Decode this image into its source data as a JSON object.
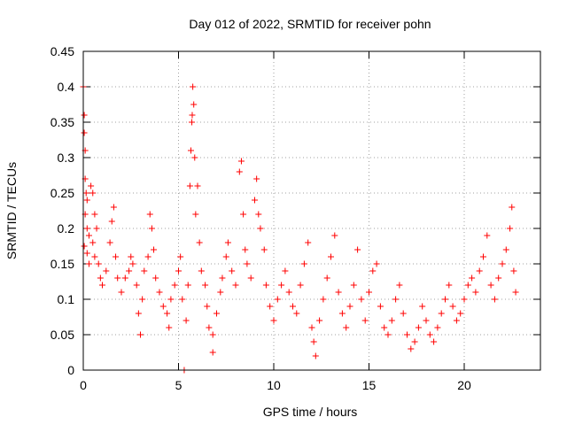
{
  "chart_data": {
    "type": "scatter",
    "title": "Day 012 of 2022, SRMTID for receiver pohn",
    "xlabel": "GPS time / hours",
    "ylabel": "SRMTID / TECUs",
    "xlim": [
      0,
      24
    ],
    "ylim": [
      0,
      0.45
    ],
    "xticks": [
      0,
      5,
      10,
      15,
      20
    ],
    "yticks": [
      0,
      0.05,
      0.1,
      0.15,
      0.2,
      0.25,
      0.3,
      0.35,
      0.4,
      0.45
    ],
    "grid": true,
    "marker": "+",
    "color": "#ff0000",
    "series": [
      {
        "name": "SRMTID",
        "sampling_note": "dense scatter; values below estimated from figure",
        "points": [
          [
            0.0,
            0.4
          ],
          [
            0.05,
            0.36
          ],
          [
            0.05,
            0.335
          ],
          [
            0.1,
            0.31
          ],
          [
            0.1,
            0.27
          ],
          [
            0.15,
            0.25
          ],
          [
            0.2,
            0.24
          ],
          [
            0.1,
            0.22
          ],
          [
            0.2,
            0.2
          ],
          [
            0.3,
            0.19
          ],
          [
            0.05,
            0.175
          ],
          [
            0.2,
            0.165
          ],
          [
            0.3,
            0.15
          ],
          [
            0.4,
            0.26
          ],
          [
            0.5,
            0.25
          ],
          [
            0.6,
            0.22
          ],
          [
            0.7,
            0.2
          ],
          [
            0.5,
            0.18
          ],
          [
            0.6,
            0.16
          ],
          [
            0.8,
            0.15
          ],
          [
            0.9,
            0.13
          ],
          [
            1.0,
            0.12
          ],
          [
            1.2,
            0.14
          ],
          [
            1.4,
            0.18
          ],
          [
            1.5,
            0.21
          ],
          [
            1.6,
            0.23
          ],
          [
            1.7,
            0.16
          ],
          [
            1.8,
            0.13
          ],
          [
            2.0,
            0.11
          ],
          [
            2.2,
            0.13
          ],
          [
            2.4,
            0.14
          ],
          [
            2.5,
            0.16
          ],
          [
            2.6,
            0.15
          ],
          [
            2.8,
            0.12
          ],
          [
            2.9,
            0.08
          ],
          [
            3.0,
            0.05
          ],
          [
            3.1,
            0.1
          ],
          [
            3.2,
            0.14
          ],
          [
            3.4,
            0.16
          ],
          [
            3.5,
            0.22
          ],
          [
            3.6,
            0.2
          ],
          [
            3.7,
            0.17
          ],
          [
            3.8,
            0.13
          ],
          [
            4.0,
            0.11
          ],
          [
            4.2,
            0.09
          ],
          [
            4.4,
            0.08
          ],
          [
            4.5,
            0.06
          ],
          [
            4.6,
            0.1
          ],
          [
            4.8,
            0.12
          ],
          [
            5.0,
            0.14
          ],
          [
            5.1,
            0.16
          ],
          [
            5.2,
            0.1
          ],
          [
            5.3,
            0.0
          ],
          [
            5.4,
            0.07
          ],
          [
            5.5,
            0.12
          ],
          [
            5.6,
            0.26
          ],
          [
            5.65,
            0.31
          ],
          [
            5.7,
            0.35
          ],
          [
            5.72,
            0.36
          ],
          [
            5.75,
            0.4
          ],
          [
            5.8,
            0.375
          ],
          [
            5.85,
            0.3
          ],
          [
            5.9,
            0.22
          ],
          [
            6.0,
            0.26
          ],
          [
            6.1,
            0.18
          ],
          [
            6.2,
            0.14
          ],
          [
            6.4,
            0.12
          ],
          [
            6.5,
            0.09
          ],
          [
            6.6,
            0.06
          ],
          [
            6.8,
            0.05
          ],
          [
            6.8,
            0.025
          ],
          [
            7.0,
            0.08
          ],
          [
            7.2,
            0.11
          ],
          [
            7.3,
            0.13
          ],
          [
            7.5,
            0.16
          ],
          [
            7.6,
            0.18
          ],
          [
            7.8,
            0.14
          ],
          [
            8.0,
            0.12
          ],
          [
            8.2,
            0.28
          ],
          [
            8.3,
            0.295
          ],
          [
            8.4,
            0.22
          ],
          [
            8.5,
            0.17
          ],
          [
            8.6,
            0.15
          ],
          [
            8.8,
            0.13
          ],
          [
            9.0,
            0.24
          ],
          [
            9.1,
            0.27
          ],
          [
            9.2,
            0.22
          ],
          [
            9.3,
            0.2
          ],
          [
            9.5,
            0.17
          ],
          [
            9.6,
            0.12
          ],
          [
            9.8,
            0.09
          ],
          [
            10.0,
            0.07
          ],
          [
            10.2,
            0.1
          ],
          [
            10.4,
            0.12
          ],
          [
            10.6,
            0.14
          ],
          [
            10.8,
            0.11
          ],
          [
            11.0,
            0.09
          ],
          [
            11.2,
            0.08
          ],
          [
            11.4,
            0.12
          ],
          [
            11.6,
            0.15
          ],
          [
            11.8,
            0.18
          ],
          [
            12.0,
            0.06
          ],
          [
            12.1,
            0.04
          ],
          [
            12.2,
            0.02
          ],
          [
            12.4,
            0.07
          ],
          [
            12.6,
            0.1
          ],
          [
            12.8,
            0.13
          ],
          [
            13.0,
            0.16
          ],
          [
            13.2,
            0.19
          ],
          [
            13.4,
            0.11
          ],
          [
            13.6,
            0.08
          ],
          [
            13.8,
            0.06
          ],
          [
            14.0,
            0.09
          ],
          [
            14.2,
            0.12
          ],
          [
            14.4,
            0.17
          ],
          [
            14.6,
            0.1
          ],
          [
            14.8,
            0.07
          ],
          [
            15.0,
            0.11
          ],
          [
            15.2,
            0.14
          ],
          [
            15.4,
            0.15
          ],
          [
            15.6,
            0.09
          ],
          [
            15.8,
            0.06
          ],
          [
            16.0,
            0.05
          ],
          [
            16.2,
            0.07
          ],
          [
            16.4,
            0.1
          ],
          [
            16.6,
            0.12
          ],
          [
            16.8,
            0.08
          ],
          [
            17.0,
            0.05
          ],
          [
            17.2,
            0.03
          ],
          [
            17.4,
            0.04
          ],
          [
            17.6,
            0.06
          ],
          [
            17.8,
            0.09
          ],
          [
            18.0,
            0.07
          ],
          [
            18.2,
            0.05
          ],
          [
            18.4,
            0.04
          ],
          [
            18.6,
            0.06
          ],
          [
            18.8,
            0.08
          ],
          [
            19.0,
            0.1
          ],
          [
            19.2,
            0.12
          ],
          [
            19.4,
            0.09
          ],
          [
            19.6,
            0.07
          ],
          [
            19.8,
            0.08
          ],
          [
            20.0,
            0.1
          ],
          [
            20.2,
            0.12
          ],
          [
            20.4,
            0.13
          ],
          [
            20.6,
            0.11
          ],
          [
            20.8,
            0.14
          ],
          [
            21.0,
            0.16
          ],
          [
            21.2,
            0.19
          ],
          [
            21.4,
            0.12
          ],
          [
            21.6,
            0.1
          ],
          [
            21.8,
            0.13
          ],
          [
            22.0,
            0.15
          ],
          [
            22.2,
            0.17
          ],
          [
            22.4,
            0.2
          ],
          [
            22.5,
            0.23
          ],
          [
            22.6,
            0.14
          ],
          [
            22.7,
            0.11
          ]
        ]
      }
    ]
  }
}
